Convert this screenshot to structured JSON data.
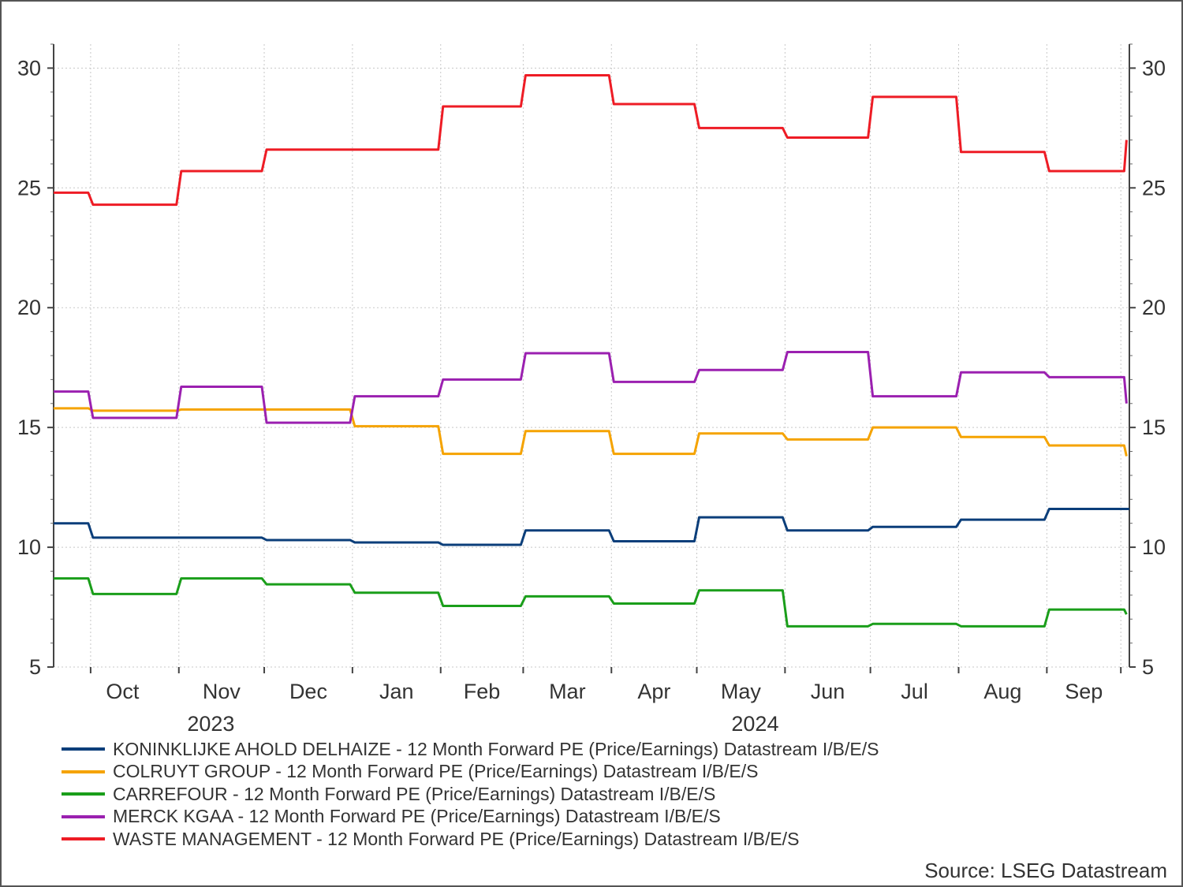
{
  "chart_data": {
    "type": "line",
    "step": true,
    "title": "",
    "xlabel": "",
    "ylabel": "",
    "ylim": [
      5,
      31
    ],
    "yticks": [
      5,
      10,
      15,
      20,
      25,
      30
    ],
    "y_axis_both_sides": true,
    "grid": true,
    "x_range": [
      "2023-09-18",
      "2024-09-30"
    ],
    "month_ticks": [
      {
        "label": "Oct",
        "date": "2023-10-01",
        "tick": "2023-10-01",
        "year": "2023"
      },
      {
        "label": "Nov",
        "date": "2023-11-01",
        "tick": "2023-11-01",
        "year": ""
      },
      {
        "label": "Dec",
        "date": "2023-12-01",
        "tick": "2023-12-01",
        "year": ""
      },
      {
        "label": "Jan",
        "date": "2024-01-01",
        "tick": "2024-01-01",
        "year": ""
      },
      {
        "label": "Feb",
        "date": "2024-02-01",
        "tick": "2024-02-01",
        "year": ""
      },
      {
        "label": "Mar",
        "date": "2024-03-01",
        "tick": "2024-03-01",
        "year": ""
      },
      {
        "label": "Apr",
        "date": "2024-04-01",
        "tick": "2024-04-01",
        "year": ""
      },
      {
        "label": "May",
        "date": "2024-05-01",
        "tick": "2024-05-01",
        "year": "2024"
      },
      {
        "label": "Jun",
        "date": "2024-06-01",
        "tick": "2024-06-01",
        "year": ""
      },
      {
        "label": "Jul",
        "date": "2024-07-01",
        "tick": "2024-07-01",
        "year": ""
      },
      {
        "label": "Aug",
        "date": "2024-08-01",
        "tick": "2024-08-01",
        "year": ""
      },
      {
        "label": "Sep",
        "date": "2024-09-01",
        "tick": "2024-09-01",
        "year": ""
      },
      {
        "label": "",
        "date": "",
        "tick": "2024-09-27",
        "year": ""
      }
    ],
    "series": [
      {
        "name": "KONINKLIJKE AHOLD DELHAIZE - 12 Month Forward PE (Price/Earnings) Datastream I/B/E/S",
        "color": "#0b3e7a",
        "points": [
          [
            "2023-09-18",
            11.0
          ],
          [
            "2023-10-01",
            10.4
          ],
          [
            "2023-12-01",
            10.3
          ],
          [
            "2024-01-01",
            10.2
          ],
          [
            "2024-02-01",
            10.1
          ],
          [
            "2024-03-01",
            10.7
          ],
          [
            "2024-04-01",
            10.25
          ],
          [
            "2024-05-01",
            11.25
          ],
          [
            "2024-06-01",
            10.7
          ],
          [
            "2024-07-01",
            10.85
          ],
          [
            "2024-08-01",
            11.15
          ],
          [
            "2024-09-01",
            11.6
          ],
          [
            "2024-09-30",
            11.6
          ]
        ]
      },
      {
        "name": "COLRUYT GROUP - 12 Month Forward PE (Price/Earnings) Datastream I/B/E/S",
        "color": "#f5a300",
        "points": [
          [
            "2023-09-18",
            15.8
          ],
          [
            "2023-10-01",
            15.7
          ],
          [
            "2023-11-01",
            15.75
          ],
          [
            "2024-01-01",
            15.05
          ],
          [
            "2024-02-01",
            13.9
          ],
          [
            "2024-03-01",
            14.85
          ],
          [
            "2024-04-01",
            13.9
          ],
          [
            "2024-05-01",
            14.75
          ],
          [
            "2024-06-01",
            14.5
          ],
          [
            "2024-07-01",
            15.0
          ],
          [
            "2024-08-01",
            14.6
          ],
          [
            "2024-09-01",
            14.25
          ],
          [
            "2024-09-29",
            13.8
          ]
        ]
      },
      {
        "name": "CARREFOUR - 12 Month Forward PE (Price/Earnings) Datastream I/B/E/S",
        "color": "#1a9e1a",
        "points": [
          [
            "2023-09-18",
            8.7
          ],
          [
            "2023-10-01",
            8.05
          ],
          [
            "2023-11-01",
            8.7
          ],
          [
            "2023-12-01",
            8.45
          ],
          [
            "2024-01-01",
            8.1
          ],
          [
            "2024-02-01",
            7.55
          ],
          [
            "2024-03-01",
            7.95
          ],
          [
            "2024-04-01",
            7.65
          ],
          [
            "2024-05-01",
            8.2
          ],
          [
            "2024-06-01",
            6.7
          ],
          [
            "2024-07-01",
            6.8
          ],
          [
            "2024-08-01",
            6.7
          ],
          [
            "2024-09-01",
            7.4
          ],
          [
            "2024-09-29",
            7.2
          ]
        ]
      },
      {
        "name": "MERCK KGAA - 12 Month Forward PE (Price/Earnings) Datastream I/B/E/S",
        "color": "#9b20b0",
        "points": [
          [
            "2023-09-18",
            16.5
          ],
          [
            "2023-10-01",
            15.4
          ],
          [
            "2023-11-01",
            16.7
          ],
          [
            "2023-12-01",
            15.2
          ],
          [
            "2024-01-01",
            16.3
          ],
          [
            "2024-02-01",
            17.0
          ],
          [
            "2024-03-01",
            18.1
          ],
          [
            "2024-04-01",
            16.9
          ],
          [
            "2024-05-01",
            17.4
          ],
          [
            "2024-06-01",
            18.15
          ],
          [
            "2024-07-01",
            16.3
          ],
          [
            "2024-08-01",
            17.3
          ],
          [
            "2024-09-01",
            17.1
          ],
          [
            "2024-09-29",
            16.0
          ]
        ]
      },
      {
        "name": "WASTE MANAGEMENT - 12 Month Forward PE (Price/Earnings) Datastream I/B/E/S",
        "color": "#ee1c25",
        "points": [
          [
            "2023-09-18",
            24.8
          ],
          [
            "2023-10-01",
            24.3
          ],
          [
            "2023-11-01",
            25.7
          ],
          [
            "2023-12-01",
            26.6
          ],
          [
            "2024-02-01",
            28.4
          ],
          [
            "2024-03-01",
            29.7
          ],
          [
            "2024-04-01",
            28.5
          ],
          [
            "2024-05-01",
            27.5
          ],
          [
            "2024-06-01",
            27.1
          ],
          [
            "2024-07-01",
            28.8
          ],
          [
            "2024-08-01",
            26.5
          ],
          [
            "2024-09-01",
            25.7
          ],
          [
            "2024-09-29",
            27.0
          ]
        ]
      }
    ],
    "legend_position": "bottom",
    "source": "Source: LSEG Datastream"
  }
}
